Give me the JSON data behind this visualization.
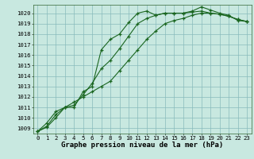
{
  "background_color": "#c8e8e0",
  "grid_color": "#88bbbb",
  "line_color": "#1a6620",
  "marker_color": "#1a6620",
  "title": "Graphe pression niveau de la mer (hPa)",
  "xlim": [
    -0.5,
    23.5
  ],
  "ylim": [
    1008.5,
    1020.8
  ],
  "yticks": [
    1009,
    1010,
    1011,
    1012,
    1013,
    1014,
    1015,
    1016,
    1017,
    1018,
    1019,
    1020
  ],
  "xticks": [
    0,
    1,
    2,
    3,
    4,
    5,
    6,
    7,
    8,
    9,
    10,
    11,
    12,
    13,
    14,
    15,
    16,
    17,
    18,
    19,
    20,
    21,
    22,
    23
  ],
  "series": [
    {
      "x": [
        0,
        1,
        2,
        3,
        4,
        5,
        6,
        7,
        8,
        9,
        10,
        11,
        12,
        13,
        14,
        15,
        16,
        17,
        18,
        19,
        20,
        21,
        22,
        23
      ],
      "y": [
        1008.7,
        1009.5,
        1010.6,
        1011.0,
        1011.0,
        1012.5,
        1013.0,
        1016.5,
        1017.5,
        1018.0,
        1019.1,
        1020.0,
        1020.2,
        1019.8,
        1020.0,
        1020.0,
        1020.0,
        1020.2,
        1020.6,
        1020.3,
        1020.0,
        1019.8,
        1019.3,
        1019.2
      ]
    },
    {
      "x": [
        0,
        1,
        2,
        3,
        4,
        5,
        6,
        7,
        8,
        9,
        10,
        11,
        12,
        13,
        14,
        15,
        16,
        17,
        18,
        19,
        20,
        21,
        22,
        23
      ],
      "y": [
        1008.7,
        1009.2,
        1010.3,
        1011.0,
        1011.2,
        1012.2,
        1013.3,
        1014.7,
        1015.5,
        1016.6,
        1017.8,
        1019.0,
        1019.5,
        1019.8,
        1020.0,
        1020.0,
        1020.0,
        1020.1,
        1020.2,
        1020.0,
        1019.9,
        1019.7,
        1019.4,
        1019.2
      ]
    },
    {
      "x": [
        0,
        1,
        2,
        3,
        4,
        5,
        6,
        7,
        8,
        9,
        10,
        11,
        12,
        13,
        14,
        15,
        16,
        17,
        18,
        19,
        20,
        21,
        22,
        23
      ],
      "y": [
        1008.7,
        1009.1,
        1010.0,
        1011.0,
        1011.5,
        1012.0,
        1012.5,
        1013.0,
        1013.5,
        1014.5,
        1015.5,
        1016.5,
        1017.5,
        1018.3,
        1019.0,
        1019.3,
        1019.5,
        1019.8,
        1020.0,
        1020.0,
        1019.9,
        1019.7,
        1019.4,
        1019.2
      ]
    }
  ],
  "title_fontsize": 6.5,
  "tick_fontsize": 5.2,
  "figsize": [
    3.2,
    2.0
  ],
  "dpi": 100
}
